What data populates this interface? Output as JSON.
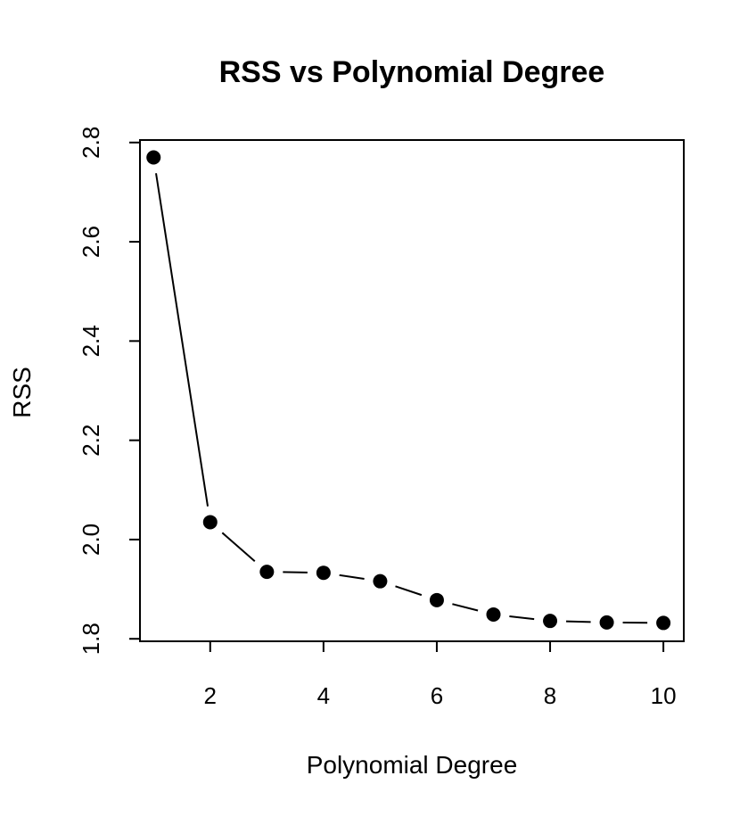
{
  "chart_data": {
    "type": "line",
    "title": "RSS vs Polynomial Degree",
    "xlabel": "Polynomial Degree",
    "ylabel": "RSS",
    "x": [
      1,
      2,
      3,
      4,
      5,
      6,
      7,
      8,
      9,
      10
    ],
    "y": [
      2.77,
      2.035,
      1.935,
      1.933,
      1.916,
      1.878,
      1.849,
      1.836,
      1.833,
      1.832
    ],
    "xlim": [
      0.76,
      10.36
    ],
    "ylim": [
      1.795,
      2.805
    ],
    "x_ticks": [
      2,
      4,
      6,
      8,
      10
    ],
    "x_tick_labels": [
      "2",
      "4",
      "6",
      "8",
      "10"
    ],
    "y_ticks": [
      1.8,
      2.0,
      2.2,
      2.4,
      2.6,
      2.8
    ],
    "y_tick_labels": [
      "1.8",
      "2.0",
      "2.2",
      "2.4",
      "2.6",
      "2.8"
    ],
    "grid": false,
    "legend": "none",
    "line_color": "#000000",
    "marker_color": "#000000"
  }
}
